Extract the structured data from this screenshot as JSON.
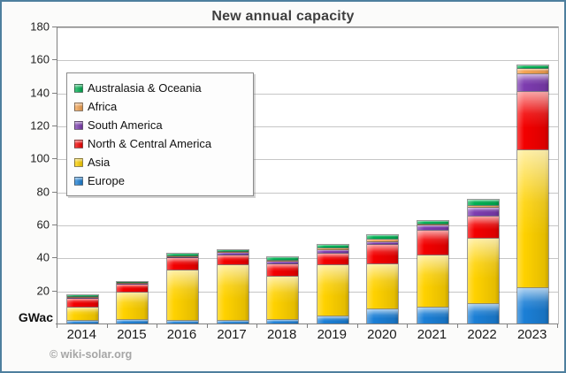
{
  "chart": {
    "title": "New annual capacity",
    "unit_label": "GWac",
    "copyright": "© wiki-solar.org"
  },
  "chart_data": {
    "type": "bar",
    "stacked": true,
    "title": "New annual capacity",
    "ylabel": "GWac",
    "ylim": [
      0,
      180
    ],
    "ytick_step": 20,
    "grid": true,
    "legend_position": "upper-left",
    "categories": [
      "2014",
      "2015",
      "2016",
      "2017",
      "2018",
      "2019",
      "2020",
      "2021",
      "2022",
      "2023"
    ],
    "series": [
      {
        "name": "Europe",
        "color": "#1b7fd6",
        "values": [
          2.3,
          2.8,
          2.3,
          2.3,
          2.9,
          4.8,
          9.3,
          10.2,
          12.4,
          21.9
        ]
      },
      {
        "name": "Asia",
        "color": "#ffd200",
        "values": [
          8.0,
          16.6,
          30.4,
          33.6,
          26.2,
          30.9,
          27.0,
          31.8,
          39.8,
          83.5
        ]
      },
      {
        "name": "North & Central America",
        "color": "#f40000",
        "values": [
          5.5,
          4.8,
          7.7,
          6.0,
          7.5,
          7.2,
          11.8,
          14.7,
          13.0,
          35.3
        ]
      },
      {
        "name": "South America",
        "color": "#7d3cb0",
        "values": [
          0.2,
          0.4,
          0.6,
          1.7,
          1.4,
          2.2,
          1.8,
          3.1,
          5.4,
          10.9
        ]
      },
      {
        "name": "Africa",
        "color": "#f5a352",
        "values": [
          0.2,
          0.2,
          0.4,
          0.2,
          0.5,
          1.1,
          1.5,
          0.5,
          1.0,
          3.0
        ]
      },
      {
        "name": "Australasia & Oceania",
        "color": "#00b052",
        "values": [
          0.8,
          0.6,
          1.2,
          1.0,
          2.3,
          2.1,
          2.5,
          2.6,
          4.0,
          2.4
        ]
      }
    ],
    "totals": [
      17.0,
      25.4,
      42.6,
      44.8,
      40.8,
      48.3,
      53.9,
      62.9,
      75.6,
      157.0
    ]
  },
  "axis": {
    "y_tick_labels": [
      "180",
      "160",
      "140",
      "120",
      "100",
      "80",
      "60",
      "40",
      "20"
    ]
  },
  "legend": {
    "items_top_to_bottom": [
      "Australasia & Oceania",
      "Africa",
      "South America",
      "North & Central America",
      "Asia",
      "Europe"
    ]
  }
}
